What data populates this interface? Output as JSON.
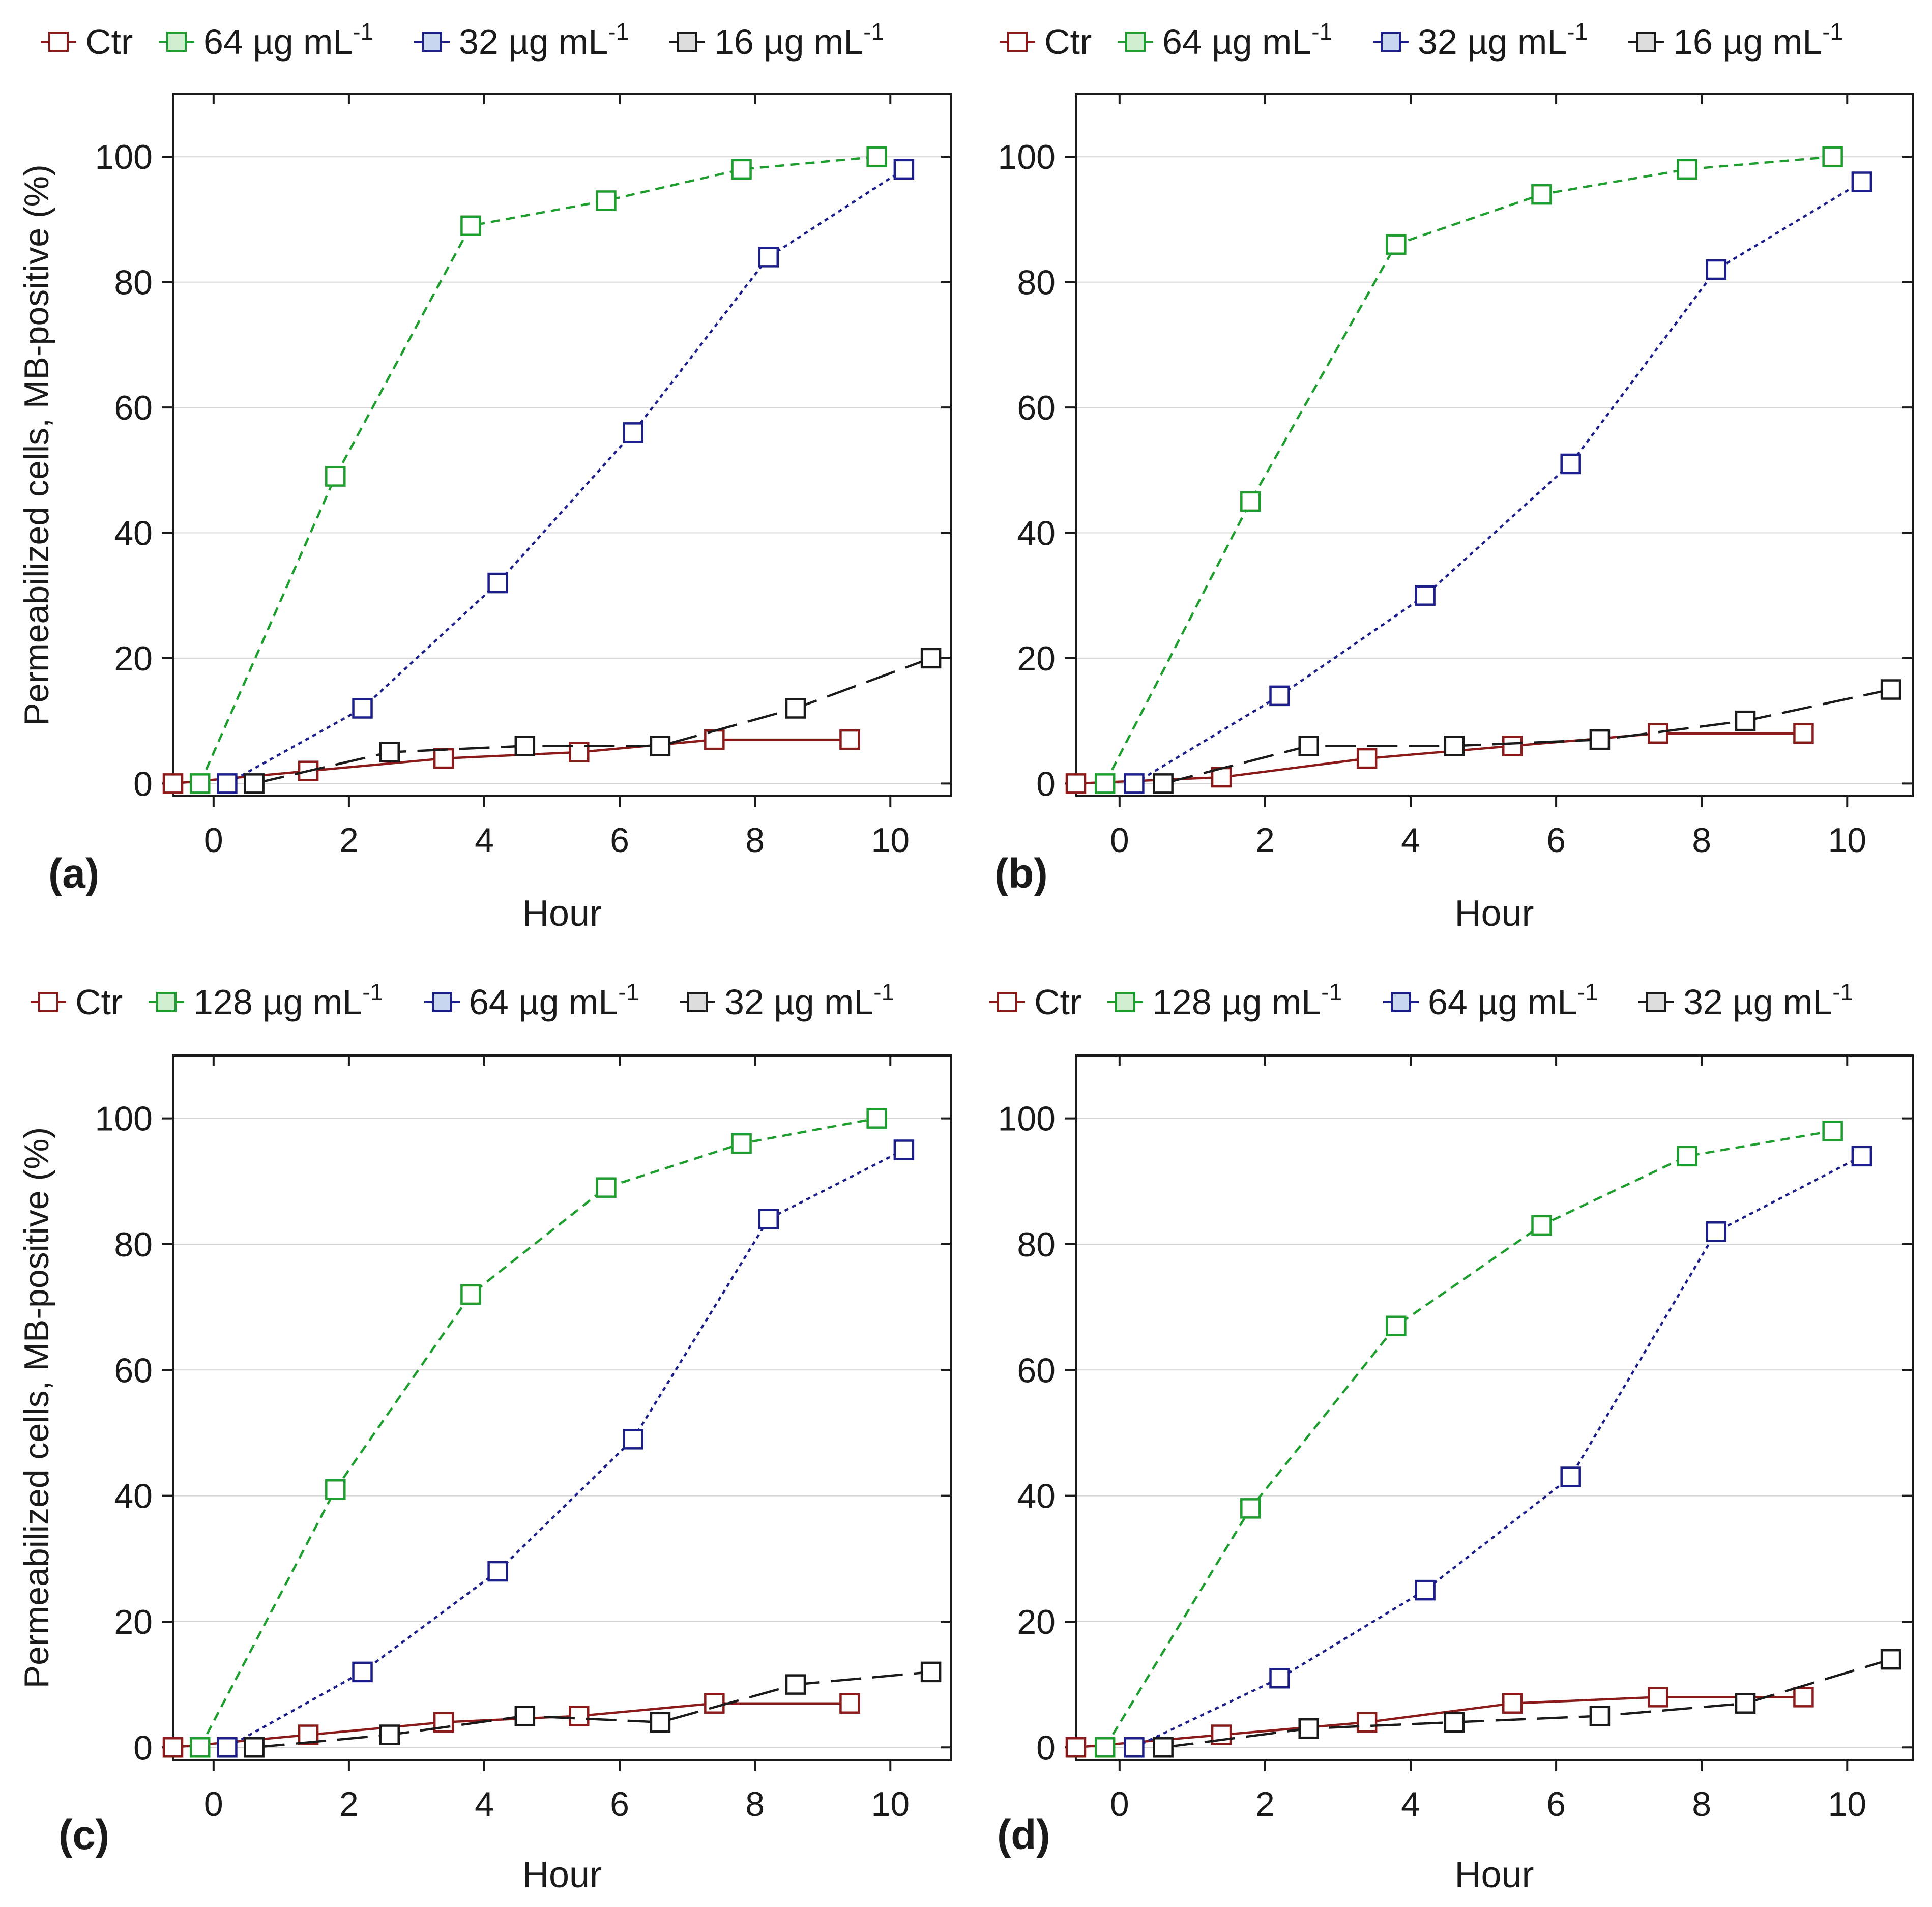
{
  "colors": {
    "ctr": "#8b1a1a",
    "high": "#1e9e2e",
    "mid": "#1c1f8a",
    "low": "#1a1a1a",
    "grid": "#d4d4d4",
    "axis": "#1a1a1a"
  },
  "chart_data": [
    {
      "panel_label": "(a)",
      "type": "line",
      "xlabel": "Hour",
      "ylabel": "Permeabilized cells, MB-positive (%)",
      "xlim": [
        -0.6,
        10.9
      ],
      "ylim": [
        -2,
        110
      ],
      "xticks": [
        0,
        2,
        4,
        6,
        8,
        10
      ],
      "yticks": [
        0,
        20,
        40,
        60,
        80,
        100
      ],
      "legend": [
        "Ctr",
        "64 µg mL",
        "32 µg mL",
        "16 µg mL"
      ],
      "unit_sup": "-1",
      "series": [
        {
          "name": "Ctr",
          "key": "ctr",
          "x": [
            -0.6,
            1.4,
            3.4,
            5.4,
            7.4,
            9.4
          ],
          "y": [
            0,
            2,
            4,
            5,
            7,
            7
          ]
        },
        {
          "name": "64 µg mL-1",
          "key": "high",
          "x": [
            -0.2,
            1.8,
            3.8,
            5.8,
            7.8,
            9.8
          ],
          "y": [
            0,
            49,
            89,
            93,
            98,
            100
          ]
        },
        {
          "name": "32 µg mL-1",
          "key": "mid",
          "x": [
            0.2,
            2.2,
            4.2,
            6.2,
            8.2,
            10.2
          ],
          "y": [
            0,
            12,
            32,
            56,
            84,
            98
          ]
        },
        {
          "name": "16 µg mL-1",
          "key": "low",
          "x": [
            0.6,
            2.6,
            4.6,
            6.6,
            8.6,
            10.6
          ],
          "y": [
            0,
            5,
            6,
            6,
            12,
            20
          ]
        }
      ]
    },
    {
      "panel_label": "(b)",
      "type": "line",
      "xlabel": "Hour",
      "ylabel": "",
      "xlim": [
        -0.6,
        10.9
      ],
      "ylim": [
        -2,
        110
      ],
      "xticks": [
        0,
        2,
        4,
        6,
        8,
        10
      ],
      "yticks": [
        0,
        20,
        40,
        60,
        80,
        100
      ],
      "legend": [
        "Ctr",
        "64 µg mL",
        "32 µg mL",
        "16 µg mL"
      ],
      "unit_sup": "-1",
      "series": [
        {
          "name": "Ctr",
          "key": "ctr",
          "x": [
            -0.6,
            1.4,
            3.4,
            5.4,
            7.4,
            9.4
          ],
          "y": [
            0,
            1,
            4,
            6,
            8,
            8
          ]
        },
        {
          "name": "64 µg mL-1",
          "key": "high",
          "x": [
            -0.2,
            1.8,
            3.8,
            5.8,
            7.8,
            9.8
          ],
          "y": [
            0,
            45,
            86,
            94,
            98,
            100
          ]
        },
        {
          "name": "32 µg mL-1",
          "key": "mid",
          "x": [
            0.2,
            2.2,
            4.2,
            6.2,
            8.2,
            10.2
          ],
          "y": [
            0,
            14,
            30,
            51,
            82,
            96
          ]
        },
        {
          "name": "16 µg mL-1",
          "key": "low",
          "x": [
            0.6,
            2.6,
            4.6,
            6.6,
            8.6,
            10.6
          ],
          "y": [
            0,
            6,
            6,
            7,
            10,
            15
          ]
        }
      ]
    },
    {
      "panel_label": "(c)",
      "type": "line",
      "xlabel": "Hour",
      "ylabel": "Permeabilized cells, MB-positive (%)",
      "xlim": [
        -0.6,
        10.9
      ],
      "ylim": [
        -2,
        110
      ],
      "xticks": [
        0,
        2,
        4,
        6,
        8,
        10
      ],
      "yticks": [
        0,
        20,
        40,
        60,
        80,
        100
      ],
      "legend": [
        "Ctr",
        "128 µg mL",
        "64 µg mL",
        "32 µg mL"
      ],
      "unit_sup": "-1",
      "series": [
        {
          "name": "Ctr",
          "key": "ctr",
          "x": [
            -0.6,
            1.4,
            3.4,
            5.4,
            7.4,
            9.4
          ],
          "y": [
            0,
            2,
            4,
            5,
            7,
            7
          ]
        },
        {
          "name": "128 µg mL-1",
          "key": "high",
          "x": [
            -0.2,
            1.8,
            3.8,
            5.8,
            7.8,
            9.8
          ],
          "y": [
            0,
            41,
            72,
            89,
            96,
            100
          ]
        },
        {
          "name": "64 µg mL-1",
          "key": "mid",
          "x": [
            0.2,
            2.2,
            4.2,
            6.2,
            8.2,
            10.2
          ],
          "y": [
            0,
            12,
            28,
            49,
            84,
            95
          ]
        },
        {
          "name": "32 µg mL-1",
          "key": "low",
          "x": [
            0.6,
            2.6,
            4.6,
            6.6,
            8.6,
            10.6
          ],
          "y": [
            0,
            2,
            5,
            4,
            10,
            12
          ]
        }
      ]
    },
    {
      "panel_label": "(d)",
      "type": "line",
      "xlabel": "Hour",
      "ylabel": "",
      "xlim": [
        -0.6,
        10.9
      ],
      "ylim": [
        -2,
        110
      ],
      "xticks": [
        0,
        2,
        4,
        6,
        8,
        10
      ],
      "yticks": [
        0,
        20,
        40,
        60,
        80,
        100
      ],
      "legend": [
        "Ctr",
        "128 µg mL",
        "64 µg mL",
        "32 µg mL"
      ],
      "unit_sup": "-1",
      "series": [
        {
          "name": "Ctr",
          "key": "ctr",
          "x": [
            -0.6,
            1.4,
            3.4,
            5.4,
            7.4,
            9.4
          ],
          "y": [
            0,
            2,
            4,
            7,
            8,
            8
          ]
        },
        {
          "name": "128 µg mL-1",
          "key": "high",
          "x": [
            -0.2,
            1.8,
            3.8,
            5.8,
            7.8,
            9.8
          ],
          "y": [
            0,
            38,
            67,
            83,
            94,
            98
          ]
        },
        {
          "name": "64 µg mL-1",
          "key": "mid",
          "x": [
            0.2,
            2.2,
            4.2,
            6.2,
            8.2,
            10.2
          ],
          "y": [
            0,
            11,
            25,
            43,
            82,
            94
          ]
        },
        {
          "name": "32 µg mL-1",
          "key": "low",
          "x": [
            0.6,
            2.6,
            4.6,
            6.6,
            8.6,
            10.6
          ],
          "y": [
            0,
            3,
            4,
            5,
            7,
            14
          ]
        }
      ]
    }
  ]
}
